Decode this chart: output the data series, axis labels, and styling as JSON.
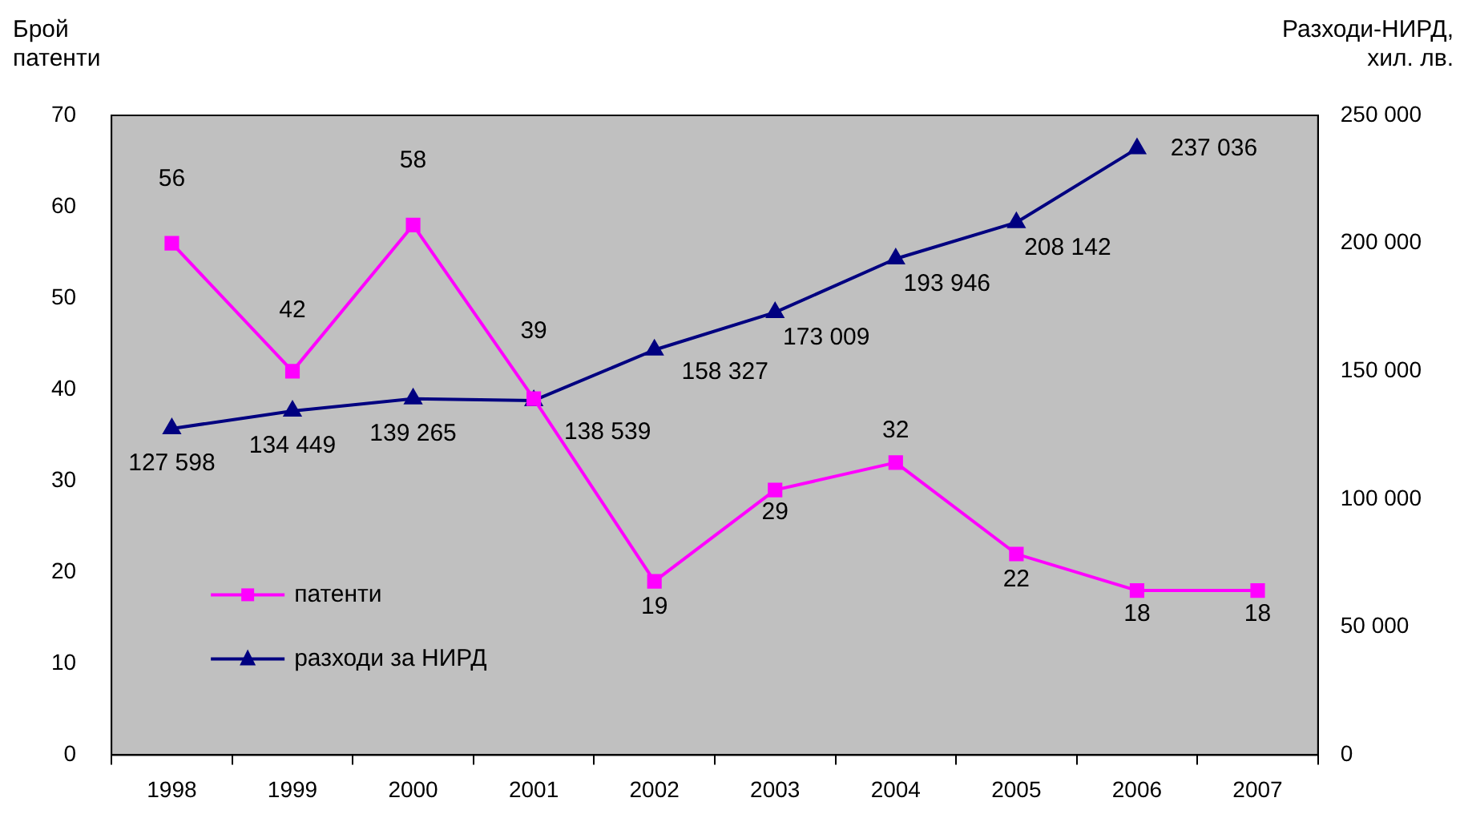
{
  "chart_data": {
    "type": "line",
    "ylabel": "Брой\nпатенти",
    "y2label": "Разходи-НИРД,\nхил. лв.",
    "categories": [
      "1998",
      "1999",
      "2000",
      "2001",
      "2002",
      "2003",
      "2004",
      "2005",
      "2006",
      "2007"
    ],
    "series": [
      {
        "name": "патенти",
        "color": "#ff00ff",
        "marker": "square",
        "values": [
          56,
          42,
          58,
          39,
          19,
          29,
          32,
          22,
          18,
          18
        ],
        "value_labels": [
          "56",
          "42",
          "58",
          "39",
          "19",
          "29",
          "32",
          "22",
          "18",
          "18"
        ]
      },
      {
        "name": "разходи за НИРД",
        "color": "#000080",
        "marker": "triangle",
        "axis": "y2",
        "values": [
          127598,
          134449,
          139265,
          138539,
          158327,
          173009,
          193946,
          208142,
          237036,
          null
        ],
        "value_labels": [
          "127 598",
          "134 449",
          "139 265",
          "138 539",
          "158 327",
          "173 009",
          "193 946",
          "208 142",
          "237 036",
          null
        ]
      }
    ],
    "ylim": [
      0,
      70
    ],
    "yticks": [
      0,
      10,
      20,
      30,
      40,
      50,
      60,
      70
    ],
    "y2lim": [
      0,
      250000
    ],
    "y2ticks": [
      0,
      {
        "value": 50000,
        "label": "50 000"
      },
      {
        "value": 100000,
        "label": "100 000"
      },
      {
        "value": 150000,
        "label": "150 000"
      },
      {
        "value": 200000,
        "label": "200 000"
      },
      {
        "value": 250000,
        "label": "250 000"
      }
    ],
    "grid": false,
    "legend": "bottom left",
    "line_style": "solid"
  }
}
